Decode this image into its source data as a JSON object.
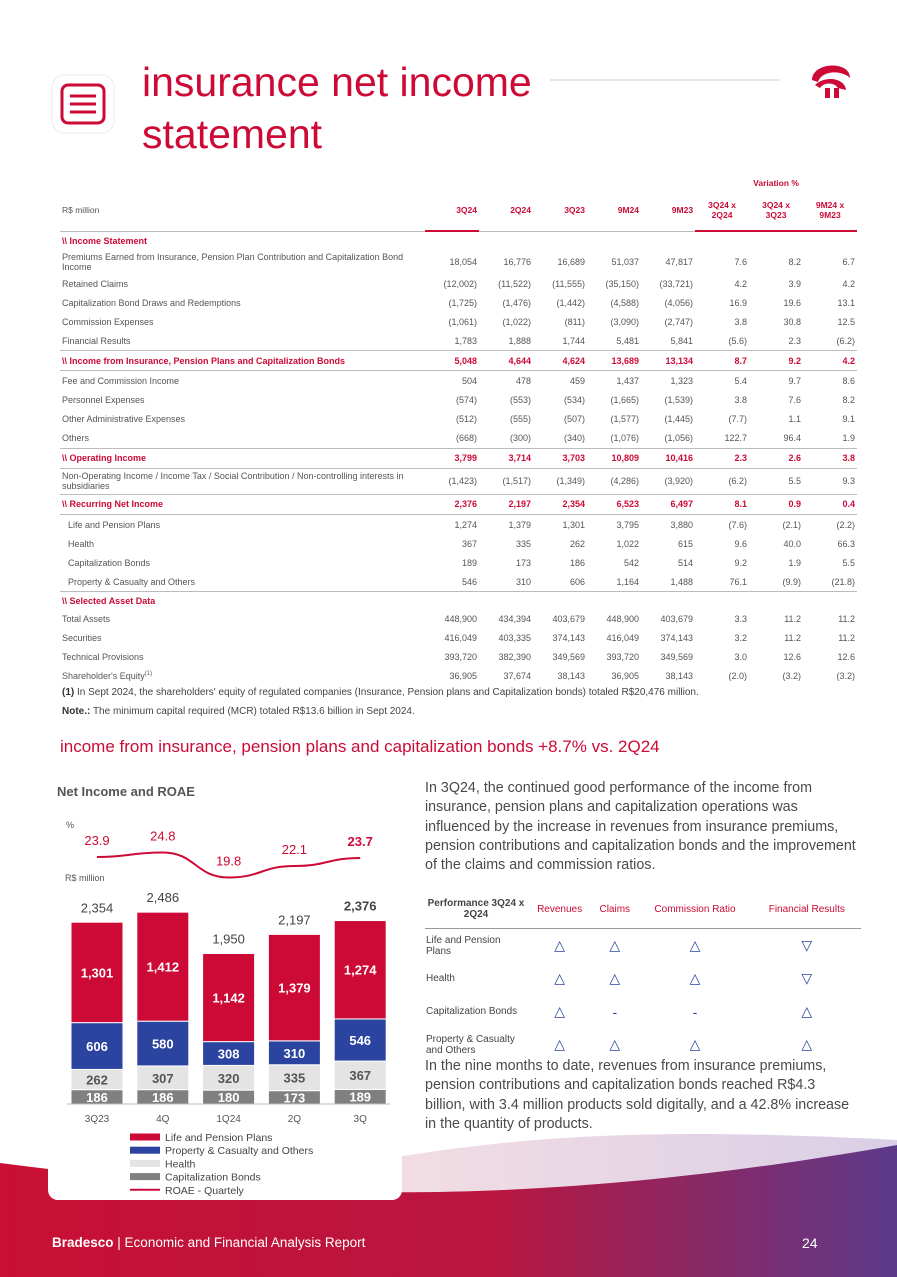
{
  "header": {
    "title": "insurance net income statement"
  },
  "table": {
    "unit": "R$ million",
    "variation_header": "Variation %",
    "columns": [
      "3Q24",
      "2Q24",
      "3Q23",
      "9M24",
      "9M23",
      "3Q24 x 2Q24",
      "3Q24 x 3Q23",
      "9M24 x 9M23"
    ],
    "rows": [
      {
        "kind": "section",
        "label": "\\\\ Income Statement"
      },
      {
        "kind": "normal",
        "label": "Premiums Earned from Insurance, Pension Plan Contribution and Capitalization Bond Income",
        "values": [
          "18,054",
          "16,776",
          "16,689",
          "51,037",
          "47,817",
          "7.6",
          "8.2",
          "6.7"
        ]
      },
      {
        "kind": "normal",
        "label": "Retained Claims",
        "values": [
          "(12,002)",
          "(11,522)",
          "(11,555)",
          "(35,150)",
          "(33,721)",
          "4.2",
          "3.9",
          "4.2"
        ]
      },
      {
        "kind": "normal",
        "label": "Capitalization Bond Draws and Redemptions",
        "values": [
          "(1,725)",
          "(1,476)",
          "(1,442)",
          "(4,588)",
          "(4,056)",
          "16.9",
          "19.6",
          "13.1"
        ]
      },
      {
        "kind": "normal",
        "label": "Commission Expenses",
        "values": [
          "(1,061)",
          "(1,022)",
          "(811)",
          "(3,090)",
          "(2,747)",
          "3.8",
          "30.8",
          "12.5"
        ]
      },
      {
        "kind": "normal",
        "label": "Financial Results",
        "values": [
          "1,783",
          "1,888",
          "1,744",
          "5,481",
          "5,841",
          "(5.6)",
          "2.3",
          "(6.2)"
        ]
      },
      {
        "kind": "total",
        "label": "\\\\ Income from Insurance, Pension Plans and Capitalization Bonds",
        "values": [
          "5,048",
          "4,644",
          "4,624",
          "13,689",
          "13,134",
          "8.7",
          "9.2",
          "4.2"
        ]
      },
      {
        "kind": "normal",
        "label": "Fee and Commission Income",
        "values": [
          "504",
          "478",
          "459",
          "1,437",
          "1,323",
          "5.4",
          "9.7",
          "8.6"
        ]
      },
      {
        "kind": "normal",
        "label": "Personnel Expenses",
        "values": [
          "(574)",
          "(553)",
          "(534)",
          "(1,665)",
          "(1,539)",
          "3.8",
          "7.6",
          "8.2"
        ]
      },
      {
        "kind": "normal",
        "label": "Other Administrative Expenses",
        "values": [
          "(512)",
          "(555)",
          "(507)",
          "(1,577)",
          "(1,445)",
          "(7.7)",
          "1.1",
          "9.1"
        ]
      },
      {
        "kind": "normal",
        "label": "Others",
        "values": [
          "(668)",
          "(300)",
          "(340)",
          "(1,076)",
          "(1,056)",
          "122.7",
          "96.4",
          "1.9"
        ]
      },
      {
        "kind": "total",
        "label": "\\\\ Operating Income",
        "values": [
          "3,799",
          "3,714",
          "3,703",
          "10,809",
          "10,416",
          "2.3",
          "2.6",
          "3.8"
        ]
      },
      {
        "kind": "normal",
        "label": "Non-Operating Income / Income Tax / Social Contribution / Non-controlling interests in subsidiaries",
        "values": [
          "(1,423)",
          "(1,517)",
          "(1,349)",
          "(4,286)",
          "(3,920)",
          "(6.2)",
          "5.5",
          "9.3"
        ]
      },
      {
        "kind": "total",
        "label": "\\\\ Recurring Net Income",
        "values": [
          "2,376",
          "2,197",
          "2,354",
          "6,523",
          "6,497",
          "8.1",
          "0.9",
          "0.4"
        ]
      },
      {
        "kind": "sub",
        "label": "Life and Pension Plans",
        "values": [
          "1,274",
          "1,379",
          "1,301",
          "3,795",
          "3,880",
          "(7.6)",
          "(2.1)",
          "(2.2)"
        ]
      },
      {
        "kind": "sub",
        "label": "Health",
        "values": [
          "367",
          "335",
          "262",
          "1,022",
          "615",
          "9.6",
          "40.0",
          "66.3"
        ]
      },
      {
        "kind": "sub",
        "label": "Capitalization Bonds",
        "values": [
          "189",
          "173",
          "186",
          "542",
          "514",
          "9.2",
          "1.9",
          "5.5"
        ]
      },
      {
        "kind": "sub",
        "label": "Property & Casualty and Others",
        "values": [
          "546",
          "310",
          "606",
          "1,164",
          "1,488",
          "76.1",
          "(9.9)",
          "(21.8)"
        ]
      },
      {
        "kind": "section",
        "label": "\\\\ Selected Asset Data"
      },
      {
        "kind": "normal",
        "label": "Total Assets",
        "values": [
          "448,900",
          "434,394",
          "403,679",
          "448,900",
          "403,679",
          "3.3",
          "11.2",
          "11.2"
        ]
      },
      {
        "kind": "normal",
        "label": "Securities",
        "values": [
          "416,049",
          "403,335",
          "374,143",
          "416,049",
          "374,143",
          "3.2",
          "11.2",
          "11.2"
        ]
      },
      {
        "kind": "normal",
        "label": "Technical Provisions",
        "values": [
          "393,720",
          "382,390",
          "349,569",
          "393,720",
          "349,569",
          "3.0",
          "12.6",
          "12.6"
        ]
      },
      {
        "kind": "normal",
        "label": "Shareholder's Equity",
        "note_ref": "(1)",
        "values": [
          "36,905",
          "37,674",
          "38,143",
          "36,905",
          "38,143",
          "(2.0)",
          "(3.2)",
          "(3.2)"
        ]
      }
    ]
  },
  "footnotes": [
    {
      "mark": "(1)",
      "text": "In Sept 2024, the shareholders' equity of regulated companies (Insurance, Pension plans and Capitalization bonds) totaled R$20,476 million."
    },
    {
      "mark": "Note.:",
      "text": "The minimum capital required (MCR) totaled R$13.6 billion in Sept 2024."
    }
  ],
  "section_heading": "income from insurance, pension plans and capitalization bonds +8.7% vs. 2Q24",
  "chart_data": {
    "type": "bar",
    "stacked": true,
    "title": "Net Income and ROAE",
    "y_label": "R$ million",
    "y2_label": "%",
    "categories": [
      "3Q23",
      "4Q",
      "1Q24",
      "2Q",
      "3Q"
    ],
    "series": [
      {
        "name": "Life and Pension Plans",
        "color": "#cc0a35",
        "values": [
          1301,
          1412,
          1142,
          1379,
          1274
        ],
        "value_labels": [
          "1,301",
          "1,412",
          "1,142",
          "1,379",
          "1,274"
        ]
      },
      {
        "name": "Property & Casualty and Others",
        "color": "#2b44a0",
        "values": [
          606,
          580,
          308,
          310,
          546
        ]
      },
      {
        "name": "Health",
        "color": "#e4e4e4",
        "values": [
          262,
          307,
          320,
          335,
          367
        ]
      },
      {
        "name": "Capitalization Bonds",
        "color": "#808080",
        "values": [
          186,
          186,
          180,
          173,
          189
        ]
      }
    ],
    "totals": {
      "values": [
        2354,
        2486,
        1950,
        2197,
        2376
      ],
      "value_labels": [
        "2,354",
        "2,486",
        "1,950",
        "2,197",
        "2,376"
      ]
    },
    "roae": {
      "name": "ROAE - Quartely",
      "color": "#cc0a35",
      "axis": "y2",
      "values": [
        23.9,
        24.8,
        19.8,
        22.1,
        23.7
      ]
    }
  },
  "paragraphs": [
    "In 3Q24, the continued good performance of the income from insurance, pension plans and capitalization operations was influenced by the increase in revenues from insurance premiums, pension contributions and capitalization bonds and the improvement of the claims and commission ratios.",
    "In the nine months to date, revenues from insurance premiums, pension contributions and capitalization bonds reached R$4.3 billion, with 3.4 million products sold digitally, and a 42.8% increase in the quantity of products."
  ],
  "performance_table": {
    "header": [
      "Performance 3Q24 x 2Q24",
      "Revenues",
      "Claims",
      "Commission Ratio",
      "Financial Results"
    ],
    "rows": [
      {
        "label": "Life and Pension Plans",
        "marks": [
          "△",
          "△",
          "△",
          "▽"
        ]
      },
      {
        "label": "Health",
        "marks": [
          "△",
          "△",
          "△",
          "▽"
        ]
      },
      {
        "label": "Capitalization Bonds",
        "marks": [
          "△",
          "-",
          "-",
          "△"
        ]
      },
      {
        "label": "Property & Casualty and Others",
        "marks": [
          "△",
          "△",
          "△",
          "△"
        ]
      }
    ]
  },
  "footer": {
    "brand": "Bradesco",
    "report": "| Economic and Financial Analysis Report",
    "page": "24"
  }
}
